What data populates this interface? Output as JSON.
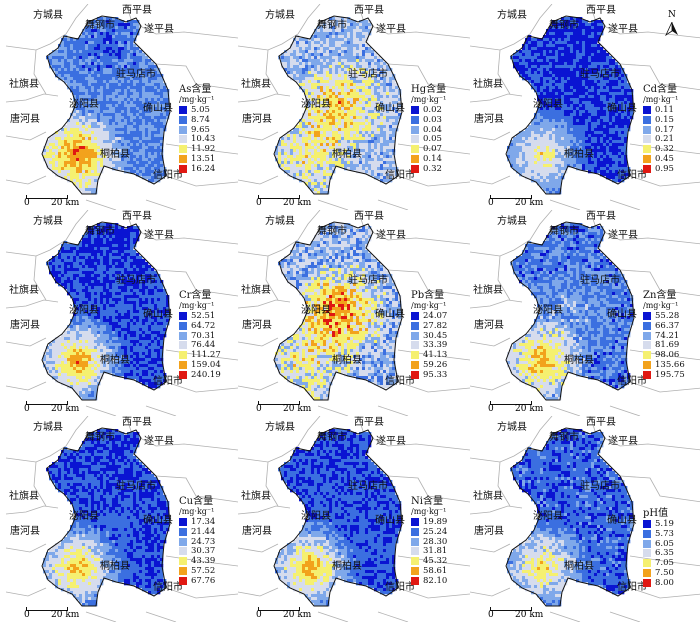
{
  "place_labels": {
    "fangcheng": "方城县",
    "wugang": "舞钢市",
    "xiping": "西平县",
    "suiping": "遂平县",
    "sheqi": "社旗县",
    "zhumadian": "驻马店市",
    "biyang": "泌阳县",
    "queshan": "确山县",
    "tanghe": "唐河县",
    "tongbai": "桐柏县",
    "xinyang": "信阳市"
  },
  "scale_bar": {
    "zero": "0",
    "distance": "20 km"
  },
  "north_arrow": {
    "label": "N"
  },
  "colors": {
    "region_outline": "#111111",
    "county_border": "#b0b0b0"
  },
  "panels": [
    {
      "id": "as",
      "title": "As含量",
      "unit": "/mg·kg⁻¹",
      "values": [
        "5.05",
        "8.74",
        "9.65",
        "10.43",
        "11.92",
        "13.51",
        "16.24"
      ]
    },
    {
      "id": "hg",
      "title": "Hg含量",
      "unit": "/mg·kg⁻¹",
      "values": [
        "0.02",
        "0.03",
        "0.04",
        "0.05",
        "0.07",
        "0.14",
        "0.32"
      ]
    },
    {
      "id": "cd",
      "title": "Cd含量",
      "unit": "/mg·kg⁻¹",
      "values": [
        "0.11",
        "0.15",
        "0.17",
        "0.21",
        "0.32",
        "0.45",
        "0.95"
      ]
    },
    {
      "id": "cr",
      "title": "Cr含量",
      "unit": "/mg·kg⁻¹",
      "values": [
        "52.51",
        "64.72",
        "70.31",
        "76.44",
        "111.27",
        "159.04",
        "240.19"
      ]
    },
    {
      "id": "pb",
      "title": "Pb含量",
      "unit": "/mg·kg⁻¹",
      "values": [
        "24.07",
        "27.82",
        "30.45",
        "33.39",
        "41.13",
        "59.26",
        "95.33"
      ]
    },
    {
      "id": "zn",
      "title": "Zn含量",
      "unit": "/mg·kg⁻¹",
      "values": [
        "55.28",
        "66.37",
        "74.21",
        "81.69",
        "98.06",
        "135.66",
        "195.75"
      ]
    },
    {
      "id": "cu",
      "title": "Cu含量",
      "unit": "/mg·kg⁻¹",
      "values": [
        "17.34",
        "21.44",
        "24.73",
        "30.37",
        "43.39",
        "57.52",
        "67.76"
      ]
    },
    {
      "id": "ni",
      "title": "Ni含量",
      "unit": "/mg·kg⁻¹",
      "values": [
        "19.89",
        "25.24",
        "28.30",
        "31.81",
        "45.32",
        "58.61",
        "82.10"
      ]
    },
    {
      "id": "ph",
      "title": "pH值",
      "unit": "",
      "values": [
        "5.19",
        "5.73",
        "6.05",
        "6.35",
        "7.05",
        "7.50",
        "8.00"
      ]
    }
  ],
  "legend_class_colors": [
    "#0a14d2",
    "#3b6fe0",
    "#7fa8ea",
    "#d6dced",
    "#f5f070",
    "#f2a21c",
    "#e01812"
  ]
}
